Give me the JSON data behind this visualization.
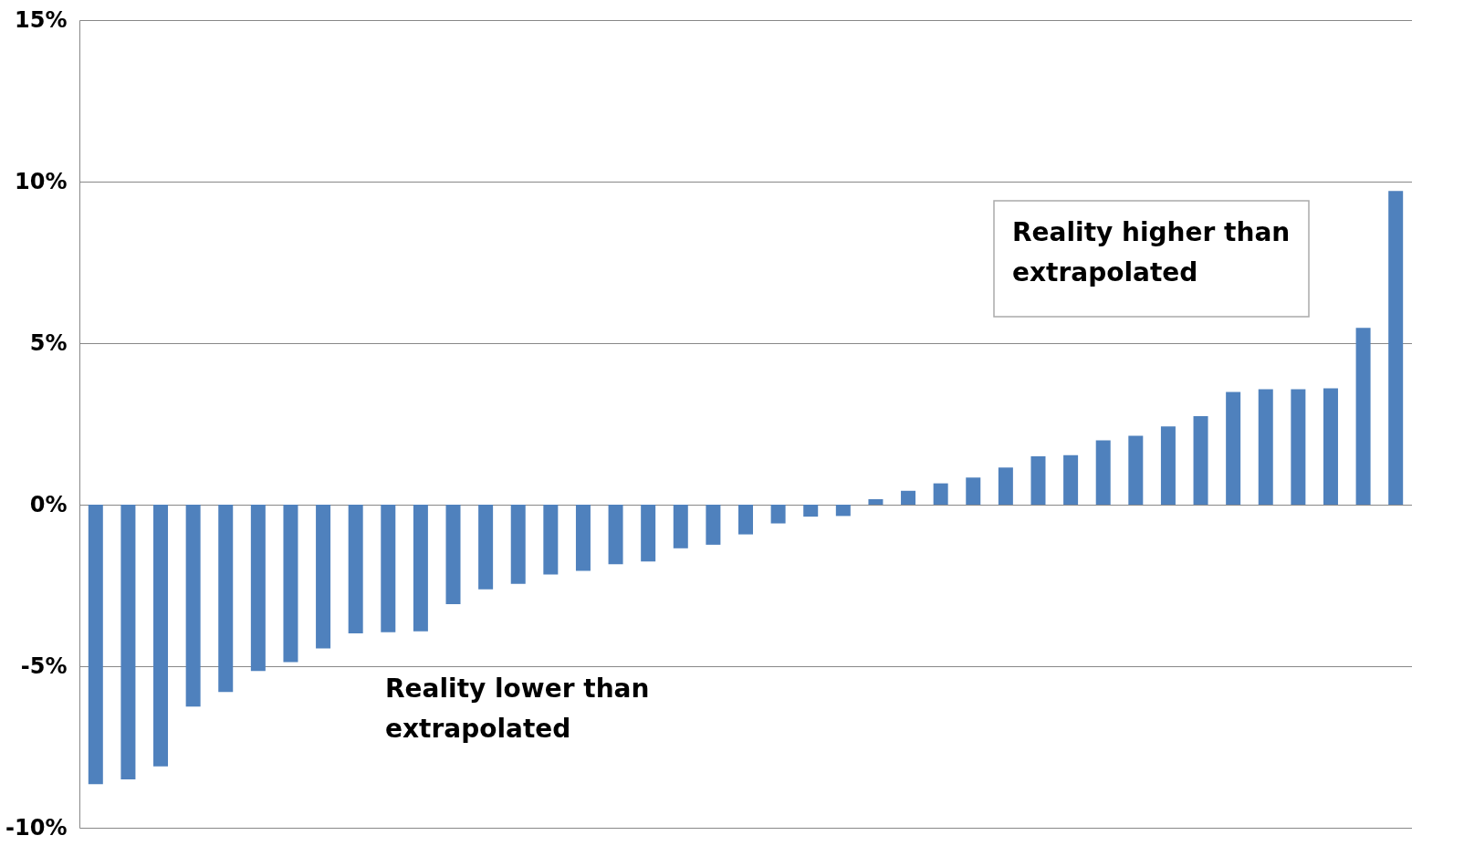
{
  "chart_data": {
    "type": "bar",
    "categories": [
      null,
      null,
      null,
      null,
      null,
      null,
      null,
      null,
      null,
      null,
      null,
      null,
      null,
      null,
      null,
      null,
      null,
      null,
      null,
      null,
      null,
      null,
      null,
      null,
      null,
      null,
      null,
      null,
      null,
      null,
      null,
      null,
      null,
      null,
      null,
      null,
      null,
      null,
      null,
      null,
      null
    ],
    "values": [
      -8.65,
      -8.5,
      -8.1,
      -6.25,
      -5.8,
      -5.15,
      -4.87,
      -4.45,
      -3.98,
      -3.95,
      -3.92,
      -3.08,
      -2.62,
      -2.45,
      -2.16,
      -2.05,
      -1.84,
      -1.76,
      -1.35,
      -1.24,
      -0.92,
      -0.58,
      -0.37,
      -0.35,
      0.17,
      0.43,
      0.66,
      0.84,
      1.15,
      1.5,
      1.53,
      1.99,
      2.13,
      2.42,
      2.74,
      3.49,
      3.57,
      3.57,
      3.6,
      5.47,
      9.71
    ],
    "color": "#4f81bd",
    "ylim": [
      -10,
      15
    ],
    "yticks": [
      {
        "value": -10,
        "label": "-10%"
      },
      {
        "value": -5,
        "label": "-5%"
      },
      {
        "value": 0,
        "label": "0%"
      },
      {
        "value": 5,
        "label": "5%"
      },
      {
        "value": 10,
        "label": "10%"
      },
      {
        "value": 15,
        "label": "15%"
      }
    ],
    "grid": "y",
    "tick_labels": "y",
    "annotations": [
      "Reality higher than extrapolated",
      "Reality lower than extrapolated"
    ]
  }
}
